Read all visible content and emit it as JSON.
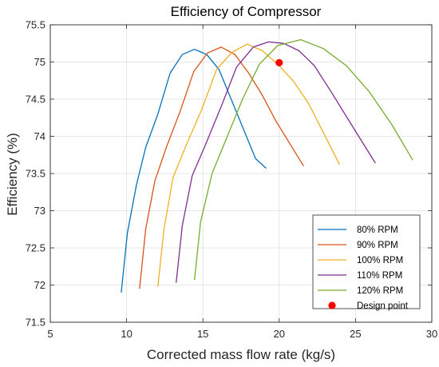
{
  "chart_data": {
    "type": "line",
    "title": "Efficiency of Compressor",
    "xlabel": "Corrected mass flow rate (kg/s)",
    "ylabel": "Efficiency (%)",
    "xlim": [
      5,
      30
    ],
    "ylim": [
      71.5,
      75.5
    ],
    "xticks": [
      5,
      10,
      15,
      20,
      25,
      30
    ],
    "yticks": [
      71.5,
      72,
      72.5,
      73,
      73.5,
      74,
      74.5,
      75,
      75.5
    ],
    "xtick_labels": [
      "5",
      "10",
      "15",
      "20",
      "25",
      "30"
    ],
    "ytick_labels": [
      "71.5",
      "72",
      "72.5",
      "73",
      "73.5",
      "74",
      "74.5",
      "75",
      "75.5"
    ],
    "grid": true,
    "legend_position": "bottom-right",
    "series": [
      {
        "name": "80% RPM",
        "color": "#0072BD",
        "x": [
          9.65,
          10.05,
          10.65,
          11.25,
          12.05,
          12.85,
          13.65,
          14.45,
          15.25,
          16.05,
          16.85,
          17.65,
          18.45,
          19.15
        ],
        "y": [
          71.9,
          72.7,
          73.35,
          73.85,
          74.3,
          74.85,
          75.1,
          75.17,
          75.1,
          74.9,
          74.5,
          74.1,
          73.7,
          73.57
        ]
      },
      {
        "name": "90% RPM",
        "color": "#D95319",
        "x": [
          10.85,
          11.25,
          11.85,
          12.6,
          13.5,
          14.4,
          15.3,
          16.2,
          17.1,
          18.0,
          18.9,
          19.8,
          20.7,
          21.6
        ],
        "y": [
          71.95,
          72.75,
          73.4,
          73.85,
          74.33,
          74.87,
          75.12,
          75.2,
          75.1,
          74.85,
          74.55,
          74.2,
          73.9,
          73.6
        ]
      },
      {
        "name": "100% RPM",
        "color": "#EDB120",
        "x": [
          12.05,
          12.45,
          13.05,
          13.9,
          14.9,
          15.9,
          16.9,
          17.9,
          18.9,
          19.9,
          20.9,
          21.9,
          22.9,
          23.95
        ],
        "y": [
          71.98,
          72.75,
          73.45,
          73.88,
          74.35,
          74.9,
          75.13,
          75.24,
          75.15,
          74.97,
          74.75,
          74.45,
          74.05,
          73.62
        ]
      },
      {
        "name": "110% RPM",
        "color": "#7E2F8E",
        "x": [
          13.25,
          13.65,
          14.3,
          15.2,
          16.2,
          17.2,
          18.3,
          19.3,
          20.3,
          21.3,
          22.3,
          23.4,
          24.6,
          26.3
        ],
        "y": [
          72.03,
          72.8,
          73.47,
          73.9,
          74.4,
          74.93,
          75.2,
          75.27,
          75.25,
          75.15,
          74.95,
          74.6,
          74.2,
          73.64
        ]
      },
      {
        "name": "120% RPM",
        "color": "#77AC30",
        "x": [
          14.45,
          14.85,
          15.6,
          16.5,
          17.6,
          18.7,
          19.9,
          21.4,
          22.9,
          24.4,
          25.9,
          27.4,
          28.75
        ],
        "y": [
          72.07,
          72.85,
          73.5,
          73.95,
          74.5,
          74.97,
          75.22,
          75.3,
          75.18,
          74.95,
          74.6,
          74.15,
          73.68
        ]
      }
    ],
    "points": [
      {
        "name": "Design point",
        "color": "#FF0000",
        "x": 20.0,
        "y": 74.99
      }
    ]
  }
}
